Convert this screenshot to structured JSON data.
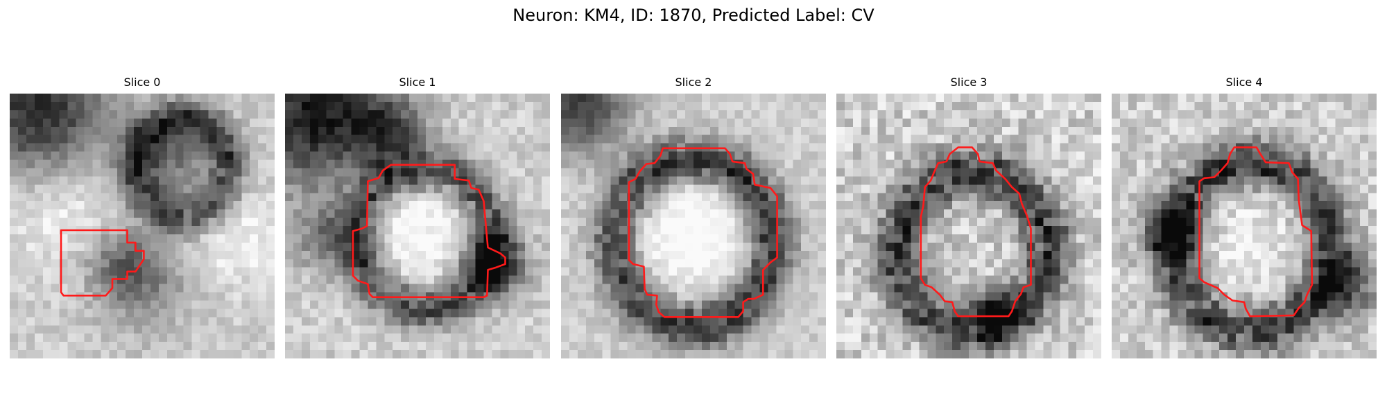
{
  "figure": {
    "title": "Neuron: KM4, ID: 1870, Predicted Label: CV"
  },
  "panels": [
    {
      "title": "Slice 0"
    },
    {
      "title": "Slice 1"
    },
    {
      "title": "Slice 2"
    },
    {
      "title": "Slice 3"
    },
    {
      "title": "Slice 4"
    }
  ],
  "colors": {
    "contour": "#ff1a1a",
    "background": "#ffffff"
  }
}
